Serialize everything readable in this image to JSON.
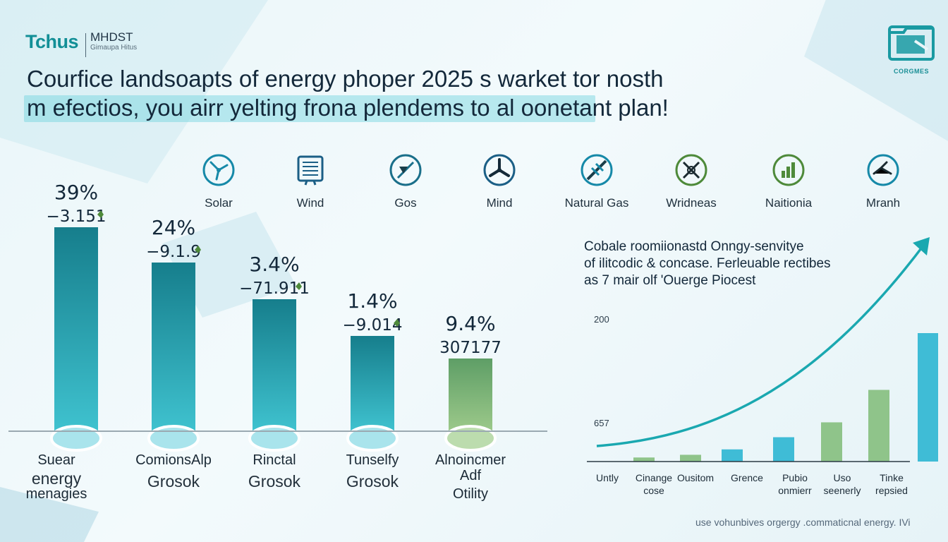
{
  "brand": {
    "name": "Tchus",
    "sub_top": "MHDST",
    "sub_bottom": "Gimaupa Hitus"
  },
  "corner_logo": {
    "label": "CORGMES",
    "icon": "folder-icon"
  },
  "headline": {
    "line1": "Courfice landsoapts of energy phoper 2025 s warket tor nosth",
    "line2": "m efectios, you airr yelting frona plendems to al oonetant plan!"
  },
  "icons": [
    {
      "label": "Solar",
      "icon": "fan-icon"
    },
    {
      "label": "Wind",
      "icon": "panel-icon"
    },
    {
      "label": "Gos",
      "icon": "slash-icon"
    },
    {
      "label": "Mind",
      "icon": "turbine-icon"
    },
    {
      "label": "Natural Gas",
      "icon": "pipeline-icon"
    },
    {
      "label": "Wridneas",
      "icon": "tools-icon"
    },
    {
      "label": "Naitionia",
      "icon": "chart-icon"
    },
    {
      "label": "Mranh",
      "icon": "tap-icon"
    }
  ],
  "colors": {
    "accent": "#128f96",
    "bar_teal_top": "#167e8c",
    "bar_teal_bottom": "#3fc2cf",
    "bar_green_top": "#5e9e66",
    "bar_green_bottom": "#9cc98a",
    "curve": "#1aa8b0",
    "leaf": "#4e8a3a"
  },
  "chart_data": [
    {
      "type": "bar",
      "values": [
        39,
        24,
        3.4,
        1.4,
        9.4
      ],
      "value_labels": [
        "39%",
        "24%",
        "3.4%",
        "1.4%",
        "9.4%"
      ],
      "sub_labels": [
        "−3.151",
        "−9.1.9",
        "−71.911",
        "−9.014",
        "307177"
      ],
      "categories": [
        [
          "Suear",
          "energy",
          "menagies"
        ],
        [
          "ComionsAlp",
          "Grosok"
        ],
        [
          "Rinctal",
          "Grosok"
        ],
        [
          "Tunselfy",
          "Grosok"
        ],
        [
          "Alnoincmer",
          "Adf",
          "Otility"
        ]
      ],
      "bar_colors": [
        "teal",
        "teal",
        "teal",
        "teal",
        "green"
      ]
    },
    {
      "type": "bar",
      "title": [
        "Cobale roomiionastd Onngy-senvitye",
        "of ilitcodic & concase. Ferleuable rectibes",
        "as 7 mair olf 'Ouerge Piocest"
      ],
      "y_ticks": [
        "200",
        "657"
      ],
      "categories": [
        [
          "Untly"
        ],
        [
          "Cinange",
          "cose"
        ],
        [
          "Ousitom"
        ],
        [
          "Grence"
        ],
        [
          "Pubio",
          "onmierr"
        ],
        [
          "Uso",
          "seenerly"
        ],
        [
          "Tinke",
          "repsied"
        ]
      ],
      "values": [
        3,
        5,
        9,
        18,
        29,
        53,
        95
      ],
      "bar_colors": [
        "#8fc48a",
        "#8fc48a",
        "#3fbcd6",
        "#3fbcd6",
        "#8fc48a",
        "#8fc48a",
        "#3fbcd6"
      ],
      "trend": "exponential"
    }
  ],
  "footer": "use vohunbives orgergy .commaticnal energy. IVi"
}
